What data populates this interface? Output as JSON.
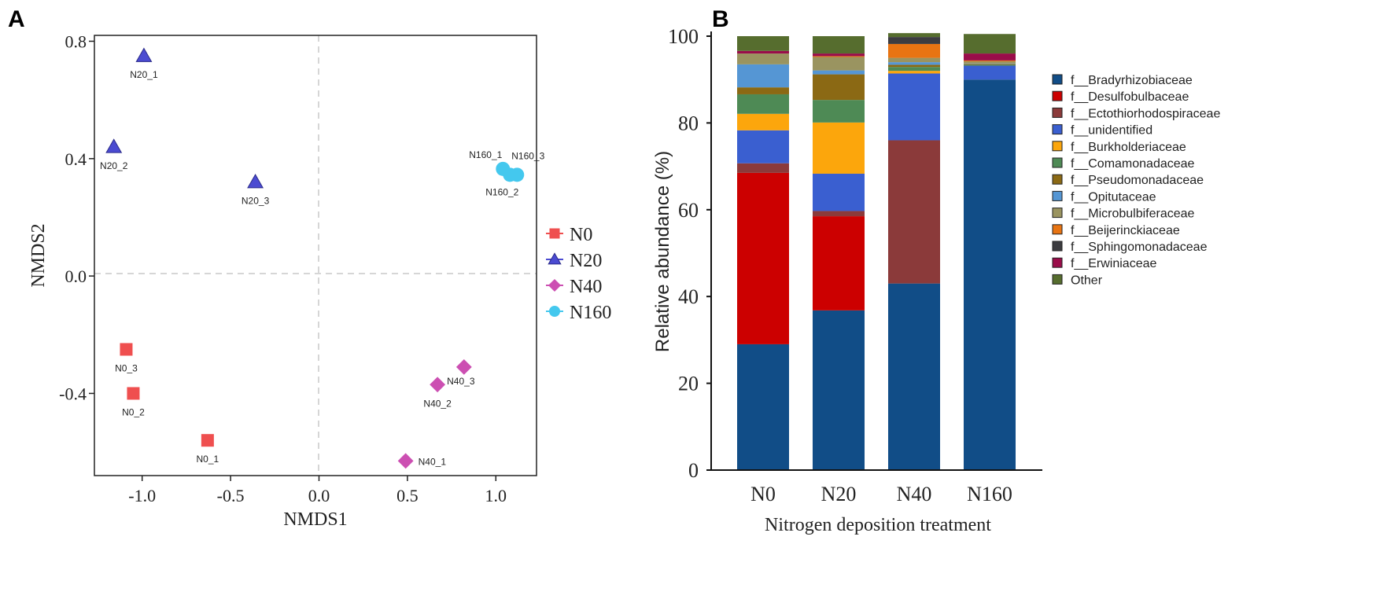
{
  "panel_a_label": "A",
  "panel_b_label": "B",
  "chart_data": [
    {
      "type": "scatter",
      "title": "",
      "xlabel": "NMDS1",
      "ylabel": "NMDS2",
      "xlim": [
        -1.27,
        1.23
      ],
      "ylim": [
        -0.68,
        0.82
      ],
      "xticks": [
        -1.0,
        -0.5,
        0.0,
        0.5,
        1.0
      ],
      "xtick_labels": [
        "-1.0",
        "-0.5",
        "0.0",
        "0.5",
        "1.0"
      ],
      "yticks": [
        -0.4,
        0.0,
        0.4,
        0.8
      ],
      "ytick_labels": [
        "-0.4",
        "0.0",
        "0.4",
        "0.8"
      ],
      "reference_lines": {
        "x": 0,
        "y": 0,
        "style": "dashed"
      },
      "legend": {
        "placement": "right"
      },
      "series": [
        {
          "name": "N0",
          "marker": "square",
          "color": "#ef4f4f",
          "points": [
            {
              "label": "N0_1",
              "x": -0.63,
              "y": -0.56
            },
            {
              "label": "N0_2",
              "x": -1.05,
              "y": -0.4
            },
            {
              "label": "N0_3",
              "x": -1.09,
              "y": -0.25
            }
          ]
        },
        {
          "name": "N20",
          "marker": "triangle",
          "color": "#4b4bd1",
          "points": [
            {
              "label": "N20_1",
              "x": -0.99,
              "y": 0.75
            },
            {
              "label": "N20_2",
              "x": -1.16,
              "y": 0.44
            },
            {
              "label": "N20_3",
              "x": -0.36,
              "y": 0.32
            }
          ]
        },
        {
          "name": "N40",
          "marker": "diamond",
          "color": "#cc4fb2",
          "points": [
            {
              "label": "N40_1",
              "x": 0.49,
              "y": -0.63
            },
            {
              "label": "N40_2",
              "x": 0.67,
              "y": -0.37
            },
            {
              "label": "N40_3",
              "x": 0.82,
              "y": -0.31
            }
          ]
        },
        {
          "name": "N160",
          "marker": "circle",
          "color": "#44c8ee",
          "points": [
            {
              "label": "N160_1",
              "x": 1.04,
              "y": 0.365
            },
            {
              "label": "N160_2",
              "x": 1.08,
              "y": 0.345
            },
            {
              "label": "N160_3",
              "x": 1.12,
              "y": 0.345
            }
          ]
        }
      ]
    },
    {
      "type": "bar",
      "stacked": true,
      "title": "",
      "xlabel": "Nitrogen deposition treatment",
      "ylabel": "Relative abundance (%)",
      "ylim": [
        0,
        100
      ],
      "yticks": [
        0,
        20,
        40,
        60,
        80,
        100
      ],
      "legend": {
        "placement": "right"
      },
      "categories": [
        "N0",
        "N20",
        "N40",
        "N160"
      ],
      "series": [
        {
          "name": "f__Bradyrhizobiaceae",
          "color": "#114d87",
          "values": [
            29,
            36.8,
            43,
            90
          ]
        },
        {
          "name": "f__Desulfobulbaceae",
          "color": "#cc0000",
          "values": [
            39.5,
            21.7,
            0,
            0
          ]
        },
        {
          "name": "f__Ectothiorhodospiraceae",
          "color": "#8b3a3a",
          "values": [
            2.2,
            1.2,
            33,
            0
          ]
        },
        {
          "name": "f__unidentified",
          "color": "#3a5fd0",
          "values": [
            7.6,
            8.6,
            15.4,
            3.2
          ]
        },
        {
          "name": "f__Burkholderiaceae",
          "color": "#fca60c",
          "values": [
            3.8,
            11.8,
            0.6,
            0
          ]
        },
        {
          "name": "f__Comamonadaceae",
          "color": "#4e8a55",
          "values": [
            4.5,
            5.2,
            0.9,
            0.2
          ]
        },
        {
          "name": "f__Pseudomonadaceae",
          "color": "#8b6914",
          "values": [
            1.6,
            5.9,
            0.5,
            0.2
          ]
        },
        {
          "name": "f__Opitutaceae",
          "color": "#5596d4",
          "values": [
            5.3,
            0.9,
            0.6,
            0.1
          ]
        },
        {
          "name": "f__Microbulbiferaceae",
          "color": "#9a9460",
          "values": [
            2.5,
            3.1,
            1.0,
            0.5
          ]
        },
        {
          "name": "f__Beijerinckiaceae",
          "color": "#e87412",
          "values": [
            0,
            0.2,
            3.2,
            0.2
          ]
        },
        {
          "name": "f__Sphingomonadaceae",
          "color": "#3c3c40",
          "values": [
            0,
            0,
            1.6,
            0
          ]
        },
        {
          "name": "f__Erwiniaceae",
          "color": "#9a0d4a",
          "values": [
            0.6,
            0.6,
            0,
            1.6
          ]
        },
        {
          "name": "Other",
          "color": "#566d2e",
          "values": [
            3.4,
            4.0,
            0.9,
            4.5
          ]
        }
      ]
    }
  ]
}
